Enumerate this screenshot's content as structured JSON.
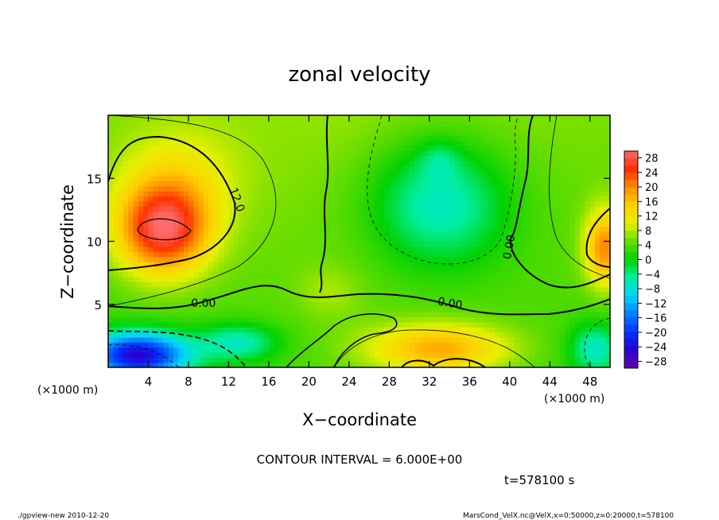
{
  "chart_data": {
    "type": "heatmap",
    "title": "zonal velocity",
    "xlabel": "X−coordinate",
    "ylabel": "Z−coordinate",
    "x_unit_label_left": "(×1000 m)",
    "x_unit_label_right": "(×1000 m)",
    "xlim": [
      0,
      50
    ],
    "ylim": [
      0,
      20
    ],
    "x_ticks": [
      4,
      8,
      12,
      16,
      20,
      24,
      28,
      32,
      36,
      40,
      44,
      48
    ],
    "y_ticks": [
      5,
      10,
      15
    ],
    "colorbar_ticks": [
      "28",
      "24",
      "20",
      "16",
      "12",
      "8",
      "4",
      "0",
      "−4",
      "−8",
      "−12",
      "−16",
      "−20",
      "−24",
      "−28"
    ],
    "colorbar_range": [
      -30,
      30
    ],
    "colormap": [
      "#6a00a8",
      "#2a00d4",
      "#0033ff",
      "#0080ff",
      "#00d6ff",
      "#00eea0",
      "#00d200",
      "#66dd00",
      "#e6f000",
      "#ffd000",
      "#ff8c00",
      "#ff3000",
      "#ff6a6a"
    ],
    "field_blobs": [
      {
        "x": 5.5,
        "z": 11,
        "sx": 4.5,
        "sz": 3.5,
        "amp": 24
      },
      {
        "x": 7,
        "z": 15,
        "sx": 6,
        "sz": 4,
        "amp": 6
      },
      {
        "x": 3,
        "z": 1,
        "sx": 5,
        "sz": 1.8,
        "amp": -28
      },
      {
        "x": 13,
        "z": 2,
        "sx": 4,
        "sz": 1.5,
        "amp": -10
      },
      {
        "x": 33,
        "z": 13,
        "sx": 7,
        "sz": 5,
        "amp": -12
      },
      {
        "x": 33,
        "z": 16.5,
        "sx": 2,
        "sz": 1.5,
        "amp": -4
      },
      {
        "x": 33,
        "z": 1.5,
        "sx": 7,
        "sz": 2,
        "amp": 14
      },
      {
        "x": 49.5,
        "z": 9.5,
        "sx": 2,
        "sz": 3,
        "amp": 16
      },
      {
        "x": 48.5,
        "z": 1.5,
        "sx": 2.5,
        "sz": 2,
        "amp": -10
      },
      {
        "x": 22,
        "z": 6,
        "sx": 3,
        "sz": 2,
        "amp": 3
      }
    ],
    "contour_labels": [
      {
        "text": "12.0",
        "x": 12.5,
        "z": 13.2,
        "rotate": 70
      },
      {
        "text": "0.00",
        "x": 9.5,
        "z": 4.8,
        "rotate": 0
      },
      {
        "text": "0.00",
        "x": 34,
        "z": 4.8,
        "rotate": 10
      },
      {
        "text": "0.00",
        "x": 40.3,
        "z": 9.5,
        "rotate": -80
      }
    ],
    "contour_interval": "CONTOUR INTERVAL = 6.000E+00",
    "time_label": "t=578100 s"
  },
  "footer": {
    "left": "./gpview-new   2010-12-20",
    "right": "MarsCond_VelX.nc@VelX,x=0:50000,z=0:20000,t=578100"
  }
}
